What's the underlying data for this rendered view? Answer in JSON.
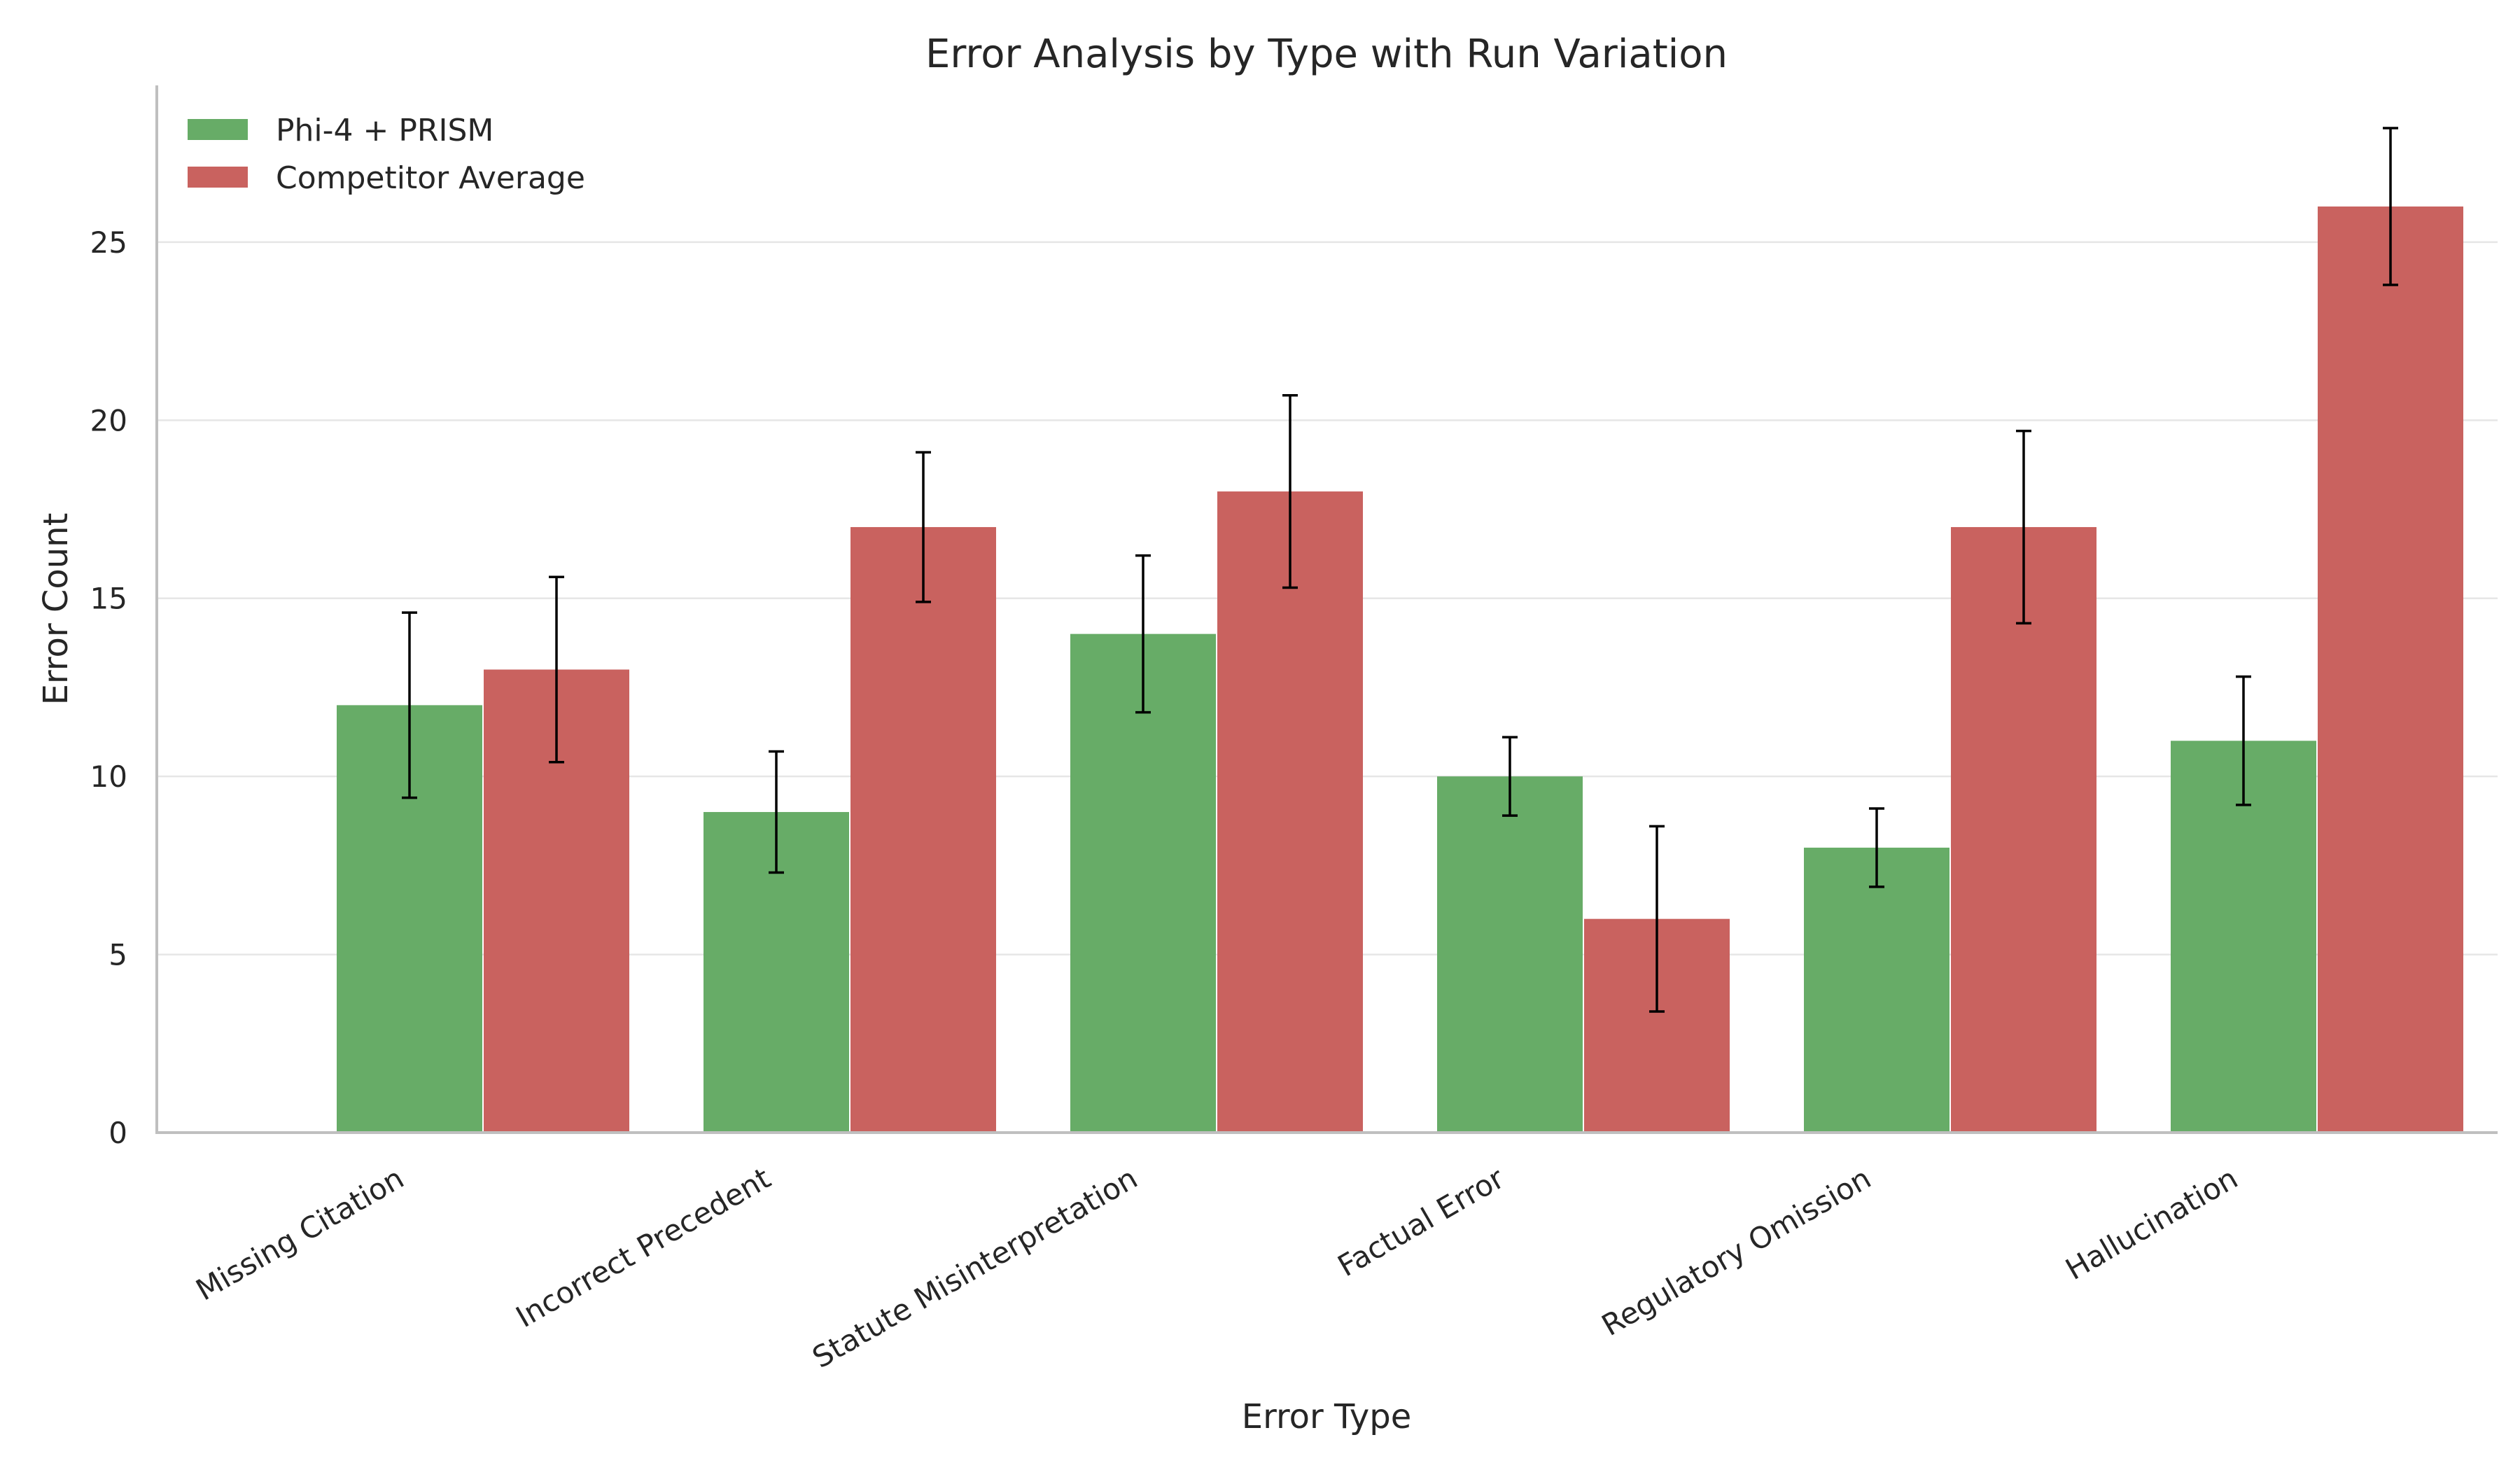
{
  "chart_data": {
    "type": "bar",
    "title": "Error Analysis by Type with Run Variation",
    "xlabel": "Error Type",
    "ylabel": "Error Count",
    "ylim": [
      0,
      29.4
    ],
    "yticks": [
      0,
      5,
      10,
      15,
      20,
      25
    ],
    "grid": "horizontal",
    "legend_position": "top-left",
    "categories": [
      "Missing Citation",
      "Incorrect Precedent",
      "Statute Misinterpretation",
      "Factual Error",
      "Regulatory Omission",
      "Hallucination"
    ],
    "series": [
      {
        "name": "Phi-4 + PRISM",
        "color": "#67ac67",
        "values": [
          12,
          9,
          14,
          10,
          8,
          11
        ],
        "errors": [
          2.6,
          1.7,
          2.2,
          1.1,
          1.1,
          1.8
        ]
      },
      {
        "name": "Competitor Average",
        "color": "#c9625f",
        "values": [
          13,
          17,
          18,
          6,
          17,
          26
        ],
        "errors": [
          2.6,
          2.1,
          2.7,
          2.6,
          2.7,
          2.2
        ]
      }
    ]
  }
}
